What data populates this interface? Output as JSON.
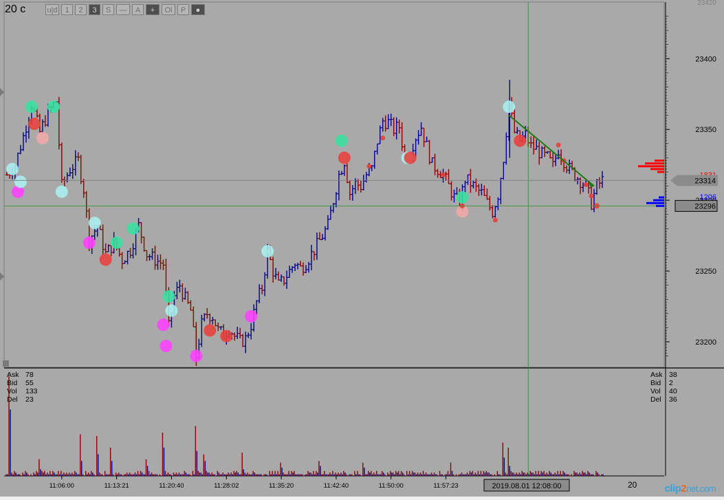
{
  "app": {
    "timeframe": "20 c",
    "toolbar": [
      {
        "id": "uld",
        "label": "u|d",
        "active": false
      },
      {
        "id": "1",
        "label": "1",
        "active": false
      },
      {
        "id": "2",
        "label": "2",
        "active": false
      },
      {
        "id": "3",
        "label": "3",
        "active": true
      },
      {
        "id": "s",
        "label": "S",
        "active": false
      },
      {
        "id": "dash",
        "label": "—",
        "active": false
      },
      {
        "id": "a",
        "label": "A",
        "active": false
      },
      {
        "id": "plus",
        "label": "+",
        "active": true
      },
      {
        "id": "ol",
        "label": "Ol",
        "active": false
      },
      {
        "id": "p",
        "label": "P",
        "active": false
      },
      {
        "id": "circle",
        "label": "●",
        "active": true
      }
    ],
    "cursor_time_label": "2019.08.01 12:08:00",
    "overflow_label": "20",
    "watermark": {
      "part1": "clip",
      "part2": "2",
      "part3": "net",
      ".com": ".com"
    }
  },
  "colors": {
    "background": "#a9a9a9",
    "up_bar": "#00008b",
    "down_bar": "#8b0000",
    "crosshair": "#2e8b2e",
    "cluster_red": "#e8403a",
    "cluster_cyan": "#a8f0ee",
    "cluster_green": "#38e0a0",
    "cluster_magenta": "#ff40ff",
    "cluster_pink": "#f0a8a8",
    "ask_color": "#ff0000",
    "bid_color": "#0000ff"
  },
  "stats_left": {
    "rows": [
      {
        "k": "Ask",
        "v": "78"
      },
      {
        "k": "Bid",
        "v": "55"
      },
      {
        "k": "Vol",
        "v": "133"
      },
      {
        "k": "Del",
        "v": "23"
      }
    ]
  },
  "stats_right": {
    "rows": [
      {
        "k": "Ask",
        "v": "38"
      },
      {
        "k": "Bid",
        "v": "2"
      },
      {
        "k": "Vol",
        "v": "40"
      },
      {
        "k": "Del",
        "v": "36"
      }
    ]
  },
  "price_panel": {
    "ask_total": "1831",
    "bid_total": "1206",
    "last_price": "23314",
    "cursor_price": "23296"
  },
  "chart_data": {
    "type": "line",
    "title": "",
    "xlabel": "",
    "ylabel": "",
    "ylim": [
      23182,
      23440
    ],
    "grid": false,
    "y_ticks": [
      23200,
      23250,
      23300,
      23350,
      23400
    ],
    "x_ticks": [
      "11:06:00",
      "11:13:21",
      "11:20:40",
      "11:28:02",
      "11:35:20",
      "11:42:40",
      "11:50:00",
      "11:57:23"
    ],
    "x_tick_index": [
      20,
      40,
      60,
      80,
      100,
      120,
      140,
      160
    ],
    "price_path": [
      [
        0,
        23318
      ],
      [
        3,
        23325
      ],
      [
        6,
        23345
      ],
      [
        9,
        23368
      ],
      [
        12,
        23348
      ],
      [
        15,
        23362
      ],
      [
        18,
        23370
      ],
      [
        20,
        23310
      ],
      [
        23,
        23322
      ],
      [
        26,
        23328
      ],
      [
        28,
        23308
      ],
      [
        30,
        23272
      ],
      [
        33,
        23282
      ],
      [
        36,
        23262
      ],
      [
        39,
        23270
      ],
      [
        42,
        23258
      ],
      [
        45,
        23265
      ],
      [
        48,
        23282
      ],
      [
        51,
        23262
      ],
      [
        54,
        23258
      ],
      [
        57,
        23255
      ],
      [
        59,
        23210
      ],
      [
        61,
        23232
      ],
      [
        63,
        23240
      ],
      [
        65,
        23230
      ],
      [
        67,
        23222
      ],
      [
        69,
        23190
      ],
      [
        71,
        23212
      ],
      [
        73,
        23220
      ],
      [
        75,
        23218
      ],
      [
        77,
        23208
      ],
      [
        79,
        23205
      ],
      [
        81,
        23210
      ],
      [
        83,
        23204
      ],
      [
        85,
        23200
      ],
      [
        87,
        23202
      ],
      [
        89,
        23212
      ],
      [
        91,
        23228
      ],
      [
        93,
        23238
      ],
      [
        95,
        23264
      ],
      [
        97,
        23250
      ],
      [
        99,
        23240
      ],
      [
        101,
        23244
      ],
      [
        103,
        23250
      ],
      [
        105,
        23256
      ],
      [
        107,
        23252
      ],
      [
        109,
        23256
      ],
      [
        111,
        23262
      ],
      [
        113,
        23268
      ],
      [
        115,
        23275
      ],
      [
        117,
        23282
      ],
      [
        119,
        23300
      ],
      [
        121,
        23318
      ],
      [
        123,
        23328
      ],
      [
        125,
        23305
      ],
      [
        127,
        23312
      ],
      [
        129,
        23310
      ],
      [
        131,
        23318
      ],
      [
        133,
        23322
      ],
      [
        135,
        23342
      ],
      [
        137,
        23356
      ],
      [
        139,
        23355
      ],
      [
        141,
        23350
      ],
      [
        143,
        23352
      ],
      [
        145,
        23330
      ],
      [
        147,
        23335
      ],
      [
        149,
        23345
      ],
      [
        151,
        23352
      ],
      [
        153,
        23338
      ],
      [
        155,
        23325
      ],
      [
        157,
        23322
      ],
      [
        159,
        23318
      ],
      [
        161,
        23310
      ],
      [
        163,
        23302
      ],
      [
        165,
        23298
      ],
      [
        167,
        23315
      ],
      [
        169,
        23312
      ],
      [
        171,
        23308
      ],
      [
        173,
        23305
      ],
      [
        175,
        23298
      ],
      [
        177,
        23292
      ],
      [
        179,
        23304
      ],
      [
        181,
        23330
      ],
      [
        183,
        23368
      ],
      [
        185,
        23348
      ],
      [
        187,
        23342
      ],
      [
        189,
        23346
      ],
      [
        191,
        23338
      ],
      [
        193,
        23336
      ],
      [
        195,
        23332
      ],
      [
        197,
        23330
      ],
      [
        199,
        23324
      ],
      [
        201,
        23336
      ],
      [
        203,
        23328
      ],
      [
        205,
        23322
      ],
      [
        207,
        23318
      ],
      [
        209,
        23314
      ],
      [
        211,
        23310
      ],
      [
        213,
        23298
      ],
      [
        215,
        23310
      ],
      [
        217,
        23314
      ]
    ],
    "volume": [
      {
        "i": 1,
        "v": 60
      },
      {
        "i": 12,
        "v": 10
      },
      {
        "i": 27,
        "v": 25
      },
      {
        "i": 33,
        "v": 24
      },
      {
        "i": 38,
        "v": 17
      },
      {
        "i": 51,
        "v": 10
      },
      {
        "i": 57,
        "v": 26
      },
      {
        "i": 69,
        "v": 30
      },
      {
        "i": 72,
        "v": 13
      },
      {
        "i": 86,
        "v": 14
      },
      {
        "i": 100,
        "v": 8
      },
      {
        "i": 114,
        "v": 9
      },
      {
        "i": 130,
        "v": 8
      },
      {
        "i": 162,
        "v": 8
      },
      {
        "i": 181,
        "v": 20
      },
      {
        "i": 183,
        "v": 17
      }
    ],
    "trend_line": {
      "from": [
        183,
        23360
      ],
      "to": [
        214,
        23310
      ]
    },
    "clusters": [
      {
        "i": 2,
        "p": 23322,
        "c": "cyan"
      },
      {
        "i": 4,
        "p": 23306,
        "c": "magenta"
      },
      {
        "i": 5,
        "p": 23313,
        "c": "cyan"
      },
      {
        "i": 9,
        "p": 23366,
        "c": "green"
      },
      {
        "i": 10,
        "p": 23354,
        "c": "red"
      },
      {
        "i": 13,
        "p": 23344,
        "c": "pink"
      },
      {
        "i": 17,
        "p": 23366,
        "c": "green"
      },
      {
        "i": 20,
        "p": 23306,
        "c": "cyan"
      },
      {
        "i": 30,
        "p": 23270,
        "c": "magenta"
      },
      {
        "i": 32,
        "p": 23284,
        "c": "cyan"
      },
      {
        "i": 36,
        "p": 23258,
        "c": "red"
      },
      {
        "i": 40,
        "p": 23270,
        "c": "green"
      },
      {
        "i": 46,
        "p": 23280,
        "c": "green"
      },
      {
        "i": 57,
        "p": 23212,
        "c": "magenta"
      },
      {
        "i": 58,
        "p": 23197,
        "c": "magenta"
      },
      {
        "i": 59,
        "p": 23232,
        "c": "green"
      },
      {
        "i": 60,
        "p": 23222,
        "c": "cyan"
      },
      {
        "i": 69,
        "p": 23190,
        "c": "magenta"
      },
      {
        "i": 74,
        "p": 23208,
        "c": "red"
      },
      {
        "i": 80,
        "p": 23204,
        "c": "red"
      },
      {
        "i": 89,
        "p": 23218,
        "c": "magenta"
      },
      {
        "i": 95,
        "p": 23264,
        "c": "cyan"
      },
      {
        "i": 122,
        "p": 23342,
        "c": "green"
      },
      {
        "i": 123,
        "p": 23330,
        "c": "red"
      },
      {
        "i": 146,
        "p": 23330,
        "c": "cyan"
      },
      {
        "i": 147,
        "p": 23330,
        "c": "red"
      },
      {
        "i": 166,
        "p": 23302,
        "c": "green"
      },
      {
        "i": 166,
        "p": 23292,
        "c": "pink"
      },
      {
        "i": 183,
        "p": 23366,
        "c": "cyan"
      },
      {
        "i": 187,
        "p": 23342,
        "c": "red"
      },
      {
        "i": 215,
        "p": 23296,
        "c": "red"
      }
    ],
    "dom_ask": [
      [
        23328,
        14
      ],
      [
        23326,
        28
      ],
      [
        23324,
        38
      ],
      [
        23322,
        20
      ],
      [
        23320,
        10
      ]
    ],
    "dom_bid": [
      [
        23302,
        8
      ],
      [
        23300,
        16
      ],
      [
        23298,
        26
      ],
      [
        23296,
        12
      ]
    ],
    "cursor": {
      "i": 190,
      "p": 23296
    }
  }
}
